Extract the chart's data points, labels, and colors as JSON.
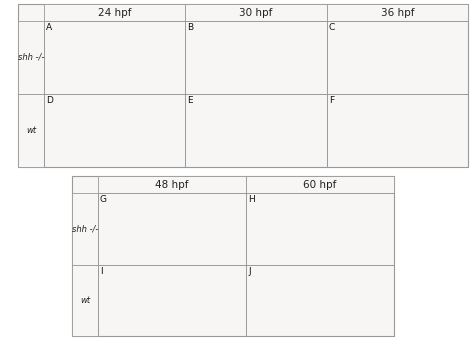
{
  "top_panel": {
    "col_headers": [
      "24 hpf",
      "30 hpf",
      "36 hpf"
    ],
    "row_labels": [
      "shh -/-",
      "wt"
    ],
    "panel_labels": [
      [
        "A",
        "B",
        "C"
      ],
      [
        "D",
        "E",
        "F"
      ]
    ]
  },
  "bottom_panel": {
    "col_headers": [
      "48 hpf",
      "60 hpf"
    ],
    "row_labels": [
      "shh -/-",
      "wt"
    ],
    "panel_labels": [
      [
        "G",
        "H"
      ],
      [
        "I",
        "J"
      ]
    ]
  },
  "header_fontsize": 7.5,
  "panel_letter_fontsize": 6.5,
  "row_label_fontsize": 6.0,
  "fig_bg": "#ffffff",
  "border_color": "#999999",
  "header_bg": "#f8f6f4",
  "cell_bg": "#e8e4de"
}
